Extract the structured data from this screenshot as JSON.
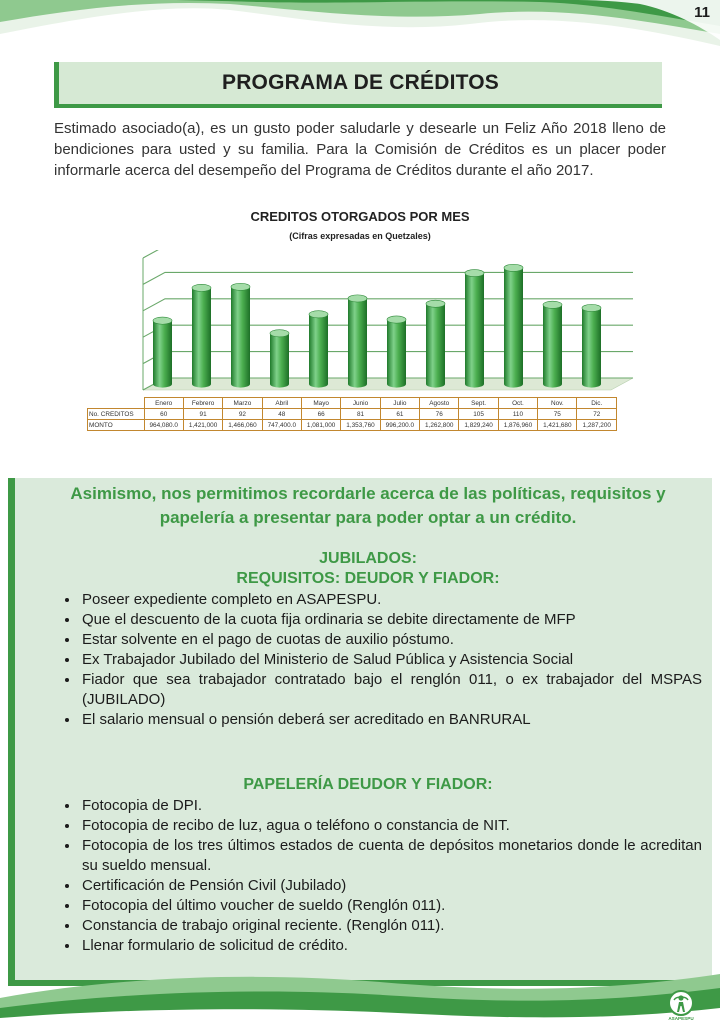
{
  "page": {
    "number": "11"
  },
  "header": {
    "title": "PROGRAMA DE CRÉDITOS"
  },
  "intro": "Estimado asociado(a), es un gusto poder saludarle y desearle un Feliz Año 2018  lleno de bendiciones para usted y su familia. Para la Comisión de Créditos es un placer poder informarle acerca del desempeño del Programa de Créditos durante el año 2017.",
  "chart_data": {
    "type": "bar",
    "title": "CREDITOS OTORGADOS POR MES",
    "subtitle": "(Cifras expresadas en Quetzales)",
    "categories": [
      "Enero",
      "Febrero",
      "Marzo",
      "Abril",
      "Mayo",
      "Junio",
      "Julio",
      "Agosto",
      "Sept.",
      "Oct.",
      "Nov.",
      "Dic."
    ],
    "series": [
      {
        "name": "No. CREDITOS",
        "values": [
          60,
          91,
          92,
          48,
          66,
          81,
          61,
          76,
          105,
          110,
          75,
          72
        ],
        "labels": [
          "60",
          "91",
          "92",
          "48",
          "66",
          "81",
          "61",
          "76",
          "105",
          "110",
          "75",
          "72"
        ]
      },
      {
        "name": "MONTO",
        "values": [
          964080.0,
          1421000,
          1466060,
          747400.0,
          1081000,
          1353760,
          996200.0,
          1262800,
          1829240,
          1876960,
          1421680,
          1287200
        ],
        "labels": [
          "964,080.0",
          "1,421,000",
          "1,466,060",
          "747,400.0",
          "1,081,000",
          "1,353,760",
          "996,200.0",
          "1,262,800",
          "1,829,240",
          "1,876,960",
          "1,421,680",
          "1,287,200"
        ]
      }
    ],
    "plotted_series": "No. CREDITOS",
    "ylim": [
      0,
      125
    ],
    "grid": true,
    "bar_shape": "3d-cylinder",
    "bar_color": "#4caf50"
  },
  "info": {
    "heading": "Asimismo, nos permitimos recordarle acerca de las políticas, requisitos y papelería a presentar para poder optar a un crédito.",
    "jubilados": {
      "heading_line1": "JUBILADOS:",
      "heading_line2": "REQUISITOS: DEUDOR Y FIADOR:",
      "items": [
        "Poseer expediente completo  en ASAPESPU.",
        "Que el descuento de la cuota fija ordinaria se debite directamente de MFP",
        "Estar solvente en el pago de cuotas de auxilio póstumo.",
        "Ex Trabajador Jubilado del Ministerio de Salud Pública y Asistencia Social",
        "Fiador que sea trabajador contratado bajo el renglón 011, o ex trabajador del MSPAS (JUBILADO)",
        "El salario mensual o pensión deberá ser acreditado en BANRURAL"
      ]
    },
    "papeleria": {
      "heading": "PAPELERÍA DEUDOR Y FIADOR:",
      "items": [
        "Fotocopia de DPI.",
        "Fotocopia de recibo de luz, agua o teléfono o constancia de NIT.",
        "Fotocopia de los tres últimos estados de cuenta de depósitos monetarios donde le acreditan su sueldo mensual.",
        "Certificación de Pensión Civil  (Jubilado)",
        "Fotocopia del último  voucher de sueldo (Renglón 011).",
        "Constancia de trabajo original reciente. (Renglón 011).",
        "Llenar formulario de solicitud de crédito."
      ]
    }
  },
  "footer": {
    "logo_text": "ASAPESPU"
  },
  "colors": {
    "green": "#3e9946",
    "light_green": "#daeadb",
    "bar_green": "#4caf50",
    "table_border": "#c2872f"
  }
}
